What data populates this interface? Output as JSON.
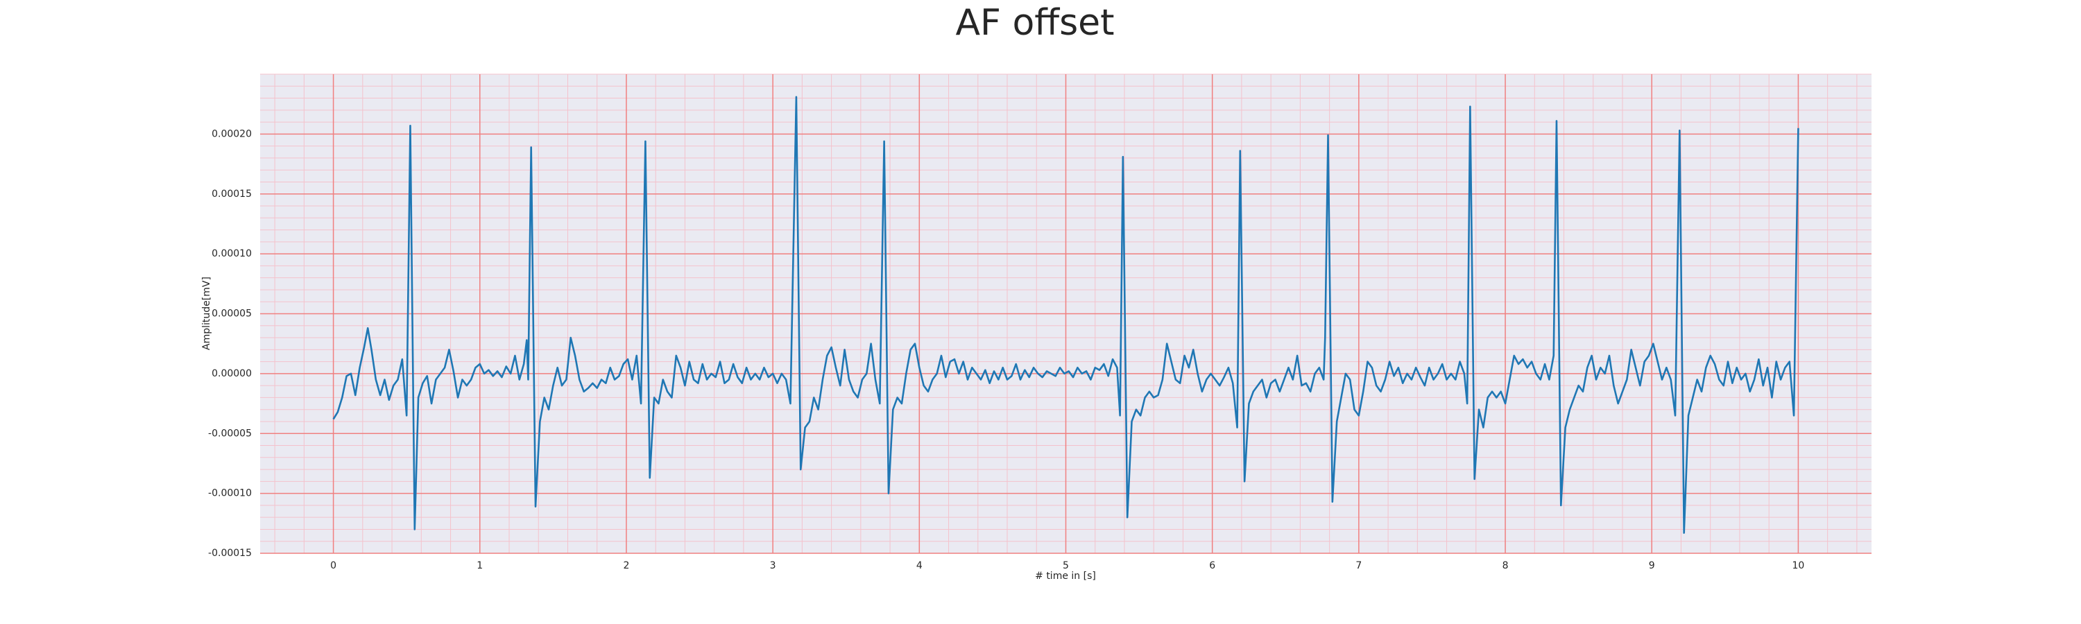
{
  "chart_data": {
    "type": "line",
    "title": "AF offset",
    "x_label": "# time in [s]",
    "y_label": "Amplitude[mV]",
    "color": "#1f77b4",
    "background": "#eaeaf2",
    "grid": true,
    "grid_color": "#f08080",
    "minor_grid": true,
    "minor_grid_color": "#f4c2cc",
    "xlim": [
      -0.5,
      10.5
    ],
    "ylim": [
      -0.00015,
      0.00025
    ],
    "xticks": [
      0,
      1,
      2,
      3,
      4,
      5,
      6,
      7,
      8,
      9,
      10
    ],
    "yticks": [
      {
        "value": -0.00015,
        "label": "-0.00015"
      },
      {
        "value": -0.0001,
        "label": "-0.00010"
      },
      {
        "value": -5e-05,
        "label": "-0.00005"
      },
      {
        "value": 0,
        "label": "0.00000"
      },
      {
        "value": 5e-05,
        "label": "0.00005"
      },
      {
        "value": 0.0001,
        "label": "0.00010"
      },
      {
        "value": 0.00015,
        "label": "0.00015"
      },
      {
        "value": 0.0002,
        "label": "0.00020"
      }
    ],
    "x": [
      0,
      0.03,
      0.06,
      0.09,
      0.12,
      0.15,
      0.18,
      0.21,
      0.235,
      0.26,
      0.29,
      0.32,
      0.35,
      0.38,
      0.41,
      0.44,
      0.47,
      0.5,
      0.525,
      0.555,
      0.58,
      0.61,
      0.64,
      0.67,
      0.7,
      0.73,
      0.76,
      0.79,
      0.82,
      0.85,
      0.88,
      0.91,
      0.94,
      0.97,
      1.0,
      1.03,
      1.06,
      1.09,
      1.12,
      1.15,
      1.18,
      1.21,
      1.24,
      1.27,
      1.3,
      1.32,
      1.33,
      1.35,
      1.38,
      1.41,
      1.44,
      1.47,
      1.5,
      1.53,
      1.56,
      1.59,
      1.62,
      1.65,
      1.68,
      1.71,
      1.74,
      1.77,
      1.8,
      1.83,
      1.86,
      1.89,
      1.92,
      1.95,
      1.98,
      2.01,
      2.04,
      2.07,
      2.1,
      2.13,
      2.16,
      2.19,
      2.22,
      2.25,
      2.28,
      2.31,
      2.34,
      2.37,
      2.4,
      2.43,
      2.46,
      2.49,
      2.52,
      2.55,
      2.58,
      2.61,
      2.64,
      2.67,
      2.7,
      2.73,
      2.76,
      2.79,
      2.82,
      2.85,
      2.88,
      2.91,
      2.94,
      2.97,
      3.0,
      3.03,
      3.06,
      3.09,
      3.12,
      3.16,
      3.19,
      3.22,
      3.25,
      3.28,
      3.31,
      3.34,
      3.37,
      3.4,
      3.43,
      3.46,
      3.49,
      3.52,
      3.55,
      3.58,
      3.61,
      3.64,
      3.67,
      3.7,
      3.73,
      3.76,
      3.79,
      3.82,
      3.85,
      3.88,
      3.91,
      3.94,
      3.97,
      4.0,
      4.03,
      4.06,
      4.09,
      4.12,
      4.15,
      4.18,
      4.21,
      4.24,
      4.27,
      4.3,
      4.33,
      4.36,
      4.39,
      4.42,
      4.45,
      4.48,
      4.51,
      4.54,
      4.57,
      4.6,
      4.63,
      4.66,
      4.69,
      4.72,
      4.75,
      4.78,
      4.81,
      4.84,
      4.87,
      4.9,
      4.93,
      4.96,
      4.99,
      5.02,
      5.05,
      5.08,
      5.11,
      5.14,
      5.17,
      5.2,
      5.23,
      5.26,
      5.29,
      5.32,
      5.35,
      5.37,
      5.39,
      5.42,
      5.45,
      5.48,
      5.51,
      5.54,
      5.57,
      5.6,
      5.63,
      5.66,
      5.69,
      5.72,
      5.75,
      5.78,
      5.81,
      5.84,
      5.87,
      5.9,
      5.93,
      5.96,
      5.99,
      6.02,
      6.05,
      6.08,
      6.11,
      6.14,
      6.17,
      6.19,
      6.22,
      6.25,
      6.28,
      6.31,
      6.34,
      6.37,
      6.4,
      6.43,
      6.46,
      6.49,
      6.52,
      6.55,
      6.58,
      6.61,
      6.64,
      6.67,
      6.7,
      6.73,
      6.76,
      6.77,
      6.79,
      6.82,
      6.85,
      6.88,
      6.91,
      6.94,
      6.97,
      7.0,
      7.03,
      7.06,
      7.09,
      7.12,
      7.15,
      7.18,
      7.21,
      7.24,
      7.27,
      7.3,
      7.33,
      7.36,
      7.39,
      7.42,
      7.45,
      7.48,
      7.51,
      7.54,
      7.57,
      7.6,
      7.63,
      7.66,
      7.69,
      7.72,
      7.74,
      7.76,
      7.79,
      7.82,
      7.85,
      7.88,
      7.91,
      7.94,
      7.97,
      8.0,
      8.03,
      8.06,
      8.09,
      8.12,
      8.15,
      8.18,
      8.21,
      8.24,
      8.27,
      8.3,
      8.33,
      8.35,
      8.38,
      8.41,
      8.44,
      8.47,
      8.5,
      8.53,
      8.56,
      8.59,
      8.62,
      8.65,
      8.68,
      8.71,
      8.74,
      8.77,
      8.8,
      8.83,
      8.86,
      8.89,
      8.92,
      8.95,
      8.98,
      9.01,
      9.04,
      9.07,
      9.1,
      9.13,
      9.16,
      9.19,
      9.22,
      9.25,
      9.28,
      9.31,
      9.34,
      9.37,
      9.4,
      9.43,
      9.46,
      9.49,
      9.52,
      9.55,
      9.58,
      9.61,
      9.64,
      9.67,
      9.7,
      9.73,
      9.76,
      9.79,
      9.82,
      9.85,
      9.88,
      9.91,
      9.94,
      9.97,
      10.0
    ],
    "values": [
      -3.8e-05,
      -3.2e-05,
      -2e-05,
      -2e-06,
      0,
      -1.8e-05,
      5e-06,
      2.2e-05,
      3.8e-05,
      2e-05,
      -5e-06,
      -1.8e-05,
      -5e-06,
      -2.2e-05,
      -1e-05,
      -5e-06,
      1.2e-05,
      -3.5e-05,
      0.000207,
      -0.00013,
      -2e-05,
      -8e-06,
      -2e-06,
      -2.5e-05,
      -5e-06,
      0,
      5e-06,
      2e-05,
      2e-06,
      -2e-05,
      -5e-06,
      -1e-05,
      -5e-06,
      5e-06,
      8e-06,
      0,
      3e-06,
      -2e-06,
      2e-06,
      -3e-06,
      6e-06,
      0,
      1.5e-05,
      -5e-06,
      8e-06,
      2.8e-05,
      -5e-06,
      0.000189,
      -0.000111,
      -4e-05,
      -2e-05,
      -3e-05,
      -1e-05,
      5e-06,
      -1e-05,
      -5e-06,
      3e-05,
      1.5e-05,
      -5e-06,
      -1.5e-05,
      -1.2e-05,
      -8e-06,
      -1.2e-05,
      -5e-06,
      -8e-06,
      5e-06,
      -5e-06,
      -2e-06,
      8e-06,
      1.2e-05,
      -5e-06,
      1.5e-05,
      -2.5e-05,
      0.000194,
      -8.7e-05,
      -2e-05,
      -2.5e-05,
      -5e-06,
      -1.5e-05,
      -2e-05,
      1.5e-05,
      5e-06,
      -1e-05,
      1e-05,
      -5e-06,
      -8e-06,
      8e-06,
      -5e-06,
      0,
      -3e-06,
      1e-05,
      -8e-06,
      -5e-06,
      8e-06,
      -3e-06,
      -8e-06,
      5e-06,
      -5e-06,
      0,
      -5e-06,
      5e-06,
      -3e-06,
      0,
      -8e-06,
      0,
      -5e-06,
      -2.5e-05,
      0.000231,
      -8e-05,
      -4.5e-05,
      -4e-05,
      -2e-05,
      -3e-05,
      -5e-06,
      1.5e-05,
      2.2e-05,
      5e-06,
      -1e-05,
      2e-05,
      -5e-06,
      -1.5e-05,
      -2e-05,
      -5e-06,
      0,
      2.5e-05,
      -5e-06,
      -2.5e-05,
      0.000194,
      -0.0001,
      -3e-05,
      -2e-05,
      -2.5e-05,
      0,
      2e-05,
      2.5e-05,
      5e-06,
      -1e-05,
      -1.5e-05,
      -5e-06,
      0,
      1.5e-05,
      -3e-06,
      1e-05,
      1.2e-05,
      0,
      1e-05,
      -5e-06,
      5e-06,
      0,
      -5e-06,
      3e-06,
      -8e-06,
      2e-06,
      -5e-06,
      5e-06,
      -5e-06,
      -2e-06,
      8e-06,
      -5e-06,
      3e-06,
      -3e-06,
      5e-06,
      0,
      -3e-06,
      2e-06,
      0,
      -2e-06,
      5e-06,
      0,
      2e-06,
      -3e-06,
      5e-06,
      0,
      2e-06,
      -5e-06,
      5e-06,
      3e-06,
      8e-06,
      -2e-06,
      1.2e-05,
      5e-06,
      -3.5e-05,
      0.000181,
      -0.00012,
      -4e-05,
      -3e-05,
      -3.5e-05,
      -2e-05,
      -1.5e-05,
      -2e-05,
      -1.8e-05,
      -5e-06,
      2.5e-05,
      1e-05,
      -5e-06,
      -8e-06,
      1.5e-05,
      5e-06,
      2e-05,
      0,
      -1.5e-05,
      -5e-06,
      0,
      -5e-06,
      -1e-05,
      -3e-06,
      5e-06,
      -8e-06,
      -4.5e-05,
      0.000186,
      -9e-05,
      -2.5e-05,
      -1.5e-05,
      -1e-05,
      -5e-06,
      -2e-05,
      -8e-06,
      -5e-06,
      -1.5e-05,
      -5e-06,
      5e-06,
      -5e-06,
      1.5e-05,
      -1e-05,
      -8e-06,
      -1.5e-05,
      0,
      5e-06,
      -5e-06,
      3e-05,
      0.000199,
      -0.000107,
      -4e-05,
      -2e-05,
      0,
      -5e-06,
      -3e-05,
      -3.5e-05,
      -1.5e-05,
      1e-05,
      5e-06,
      -1e-05,
      -1.5e-05,
      -5e-06,
      1e-05,
      -2e-06,
      5e-06,
      -8e-06,
      0,
      -5e-06,
      5e-06,
      -3e-06,
      -1e-05,
      5e-06,
      -5e-06,
      0,
      8e-06,
      -5e-06,
      0,
      -5e-06,
      1e-05,
      0,
      -2.5e-05,
      0.000223,
      -8.8e-05,
      -3e-05,
      -4.5e-05,
      -2e-05,
      -1.5e-05,
      -2e-05,
      -1.5e-05,
      -2.5e-05,
      -5e-06,
      1.5e-05,
      8e-06,
      1.2e-05,
      5e-06,
      1e-05,
      0,
      -5e-06,
      8e-06,
      -5e-06,
      1.5e-05,
      0.000211,
      -0.00011,
      -4.5e-05,
      -3e-05,
      -2e-05,
      -1e-05,
      -1.5e-05,
      5e-06,
      1.5e-05,
      -5e-06,
      5e-06,
      0,
      1.5e-05,
      -1e-05,
      -2.5e-05,
      -1.5e-05,
      -5e-06,
      2e-05,
      5e-06,
      -1e-05,
      1e-05,
      1.5e-05,
      2.5e-05,
      1e-05,
      -5e-06,
      5e-06,
      -5e-06,
      -3.5e-05,
      0.000203,
      -0.000133,
      -3.5e-05,
      -2e-05,
      -5e-06,
      -1.5e-05,
      5e-06,
      1.5e-05,
      8e-06,
      -5e-06,
      -1e-05,
      1e-05,
      -8e-06,
      5e-06,
      -5e-06,
      0,
      -1.5e-05,
      -5e-06,
      1.2e-05,
      -1e-05,
      5e-06,
      -2e-05,
      1e-05,
      -5e-06,
      5e-06,
      1e-05,
      -3.5e-05,
      0.000205
    ]
  }
}
